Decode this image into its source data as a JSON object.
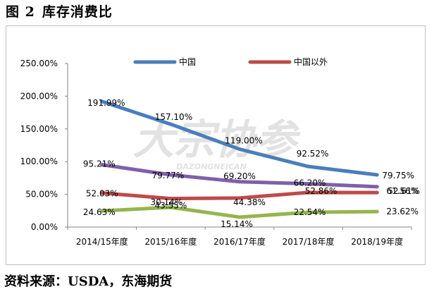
{
  "figure": {
    "number": "图 2",
    "title": "库存消费比"
  },
  "source": "资料来源：USDA，东海期货",
  "watermark": {
    "main": "大宗协参",
    "sub": "DAZONGNEICAN"
  },
  "chart_data": {
    "type": "line",
    "categories": [
      "2014/15年度",
      "2015/16年度",
      "2016/17年度",
      "2017/18年度",
      "2018/19年度"
    ],
    "ylim": [
      0,
      250
    ],
    "yticks": [
      {
        "value": 0,
        "label": "0.00%"
      },
      {
        "value": 50,
        "label": "50.00%"
      },
      {
        "value": 100,
        "label": "100.00%"
      },
      {
        "value": 150,
        "label": "150.00%"
      },
      {
        "value": 200,
        "label": "200.00%"
      },
      {
        "value": 250,
        "label": "250.00%"
      }
    ],
    "grid": false,
    "legend": "top",
    "series": [
      {
        "name": "中国",
        "color": "#4a7ebb",
        "values": [
          191.99,
          157.1,
          119.0,
          92.52,
          79.75
        ],
        "labels": [
          "191.99%",
          "157.10%",
          "119.00%",
          "92.52%",
          "79.75%"
        ]
      },
      {
        "name": "中国以外",
        "color": "#be4b48",
        "values": [
          52.03,
          43.55,
          44.38,
          52.86,
          52.61
        ],
        "labels": [
          "52.03%",
          "43.55%",
          "44.38%",
          "52.86%",
          "52.61%"
        ]
      },
      {
        "name": "",
        "color": "#7f5fa9",
        "values": [
          95.21,
          79.77,
          69.2,
          66.2,
          61.56
        ],
        "labels": [
          "95.21%",
          "79.77%",
          "69.20%",
          "66.20%",
          "61.56%"
        ]
      },
      {
        "name": "",
        "color": "#93b64c",
        "values": [
          24.63,
          30.14,
          15.14,
          22.54,
          23.62
        ],
        "labels": [
          "24.63%",
          "30.14%",
          "15.14%",
          "22.54%",
          "23.62%"
        ]
      }
    ]
  }
}
